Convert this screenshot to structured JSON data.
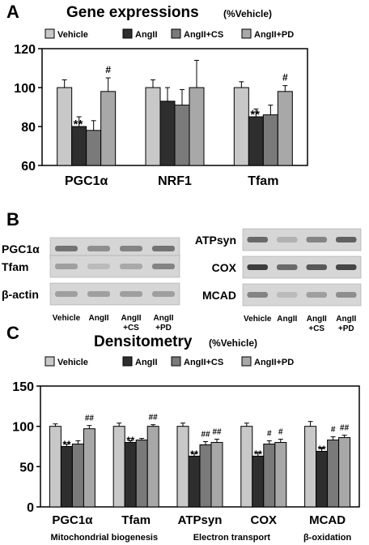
{
  "colors": {
    "vehicle": "#c8c8c8",
    "angii": "#2e2e2e",
    "angii_cs": "#7a7a7a",
    "angii_pd": "#a8a8a8"
  },
  "panelA": {
    "letter": "A",
    "title": "Gene expressions",
    "subtitle": "(%Vehicle)",
    "chart_data": {
      "type": "bar",
      "categories": [
        "PGC1α",
        "NRF1",
        "Tfam"
      ],
      "series": [
        {
          "name": "Vehicle",
          "values": [
            100,
            100,
            100
          ],
          "errors": [
            4,
            4,
            3
          ]
        },
        {
          "name": "AngII",
          "values": [
            80,
            93,
            85
          ],
          "errors": [
            5,
            7,
            4
          ]
        },
        {
          "name": "AngII+CS",
          "values": [
            78,
            91,
            86
          ],
          "errors": [
            5,
            8,
            5
          ]
        },
        {
          "name": "AngII+PD",
          "values": [
            98,
            100,
            98
          ],
          "errors": [
            7,
            14,
            3
          ]
        }
      ],
      "annotations": [
        {
          "category": 0,
          "series": 1,
          "text": "**"
        },
        {
          "category": 0,
          "series": 3,
          "text": "#"
        },
        {
          "category": 2,
          "series": 1,
          "text": "**"
        },
        {
          "category": 2,
          "series": 3,
          "text": "#"
        }
      ],
      "ylim": [
        60,
        120
      ],
      "yticks": [
        "60",
        "80",
        "100",
        "120"
      ],
      "legend": "top"
    }
  },
  "panelB": {
    "letter": "B",
    "left": {
      "rows": [
        "PGC1α",
        "Tfam",
        "β-actin"
      ],
      "lanes": [
        {
          "l1": "Vehicle",
          "l2": ""
        },
        {
          "l1": "AngII",
          "l2": ""
        },
        {
          "l1": "AngII",
          "l2": "+CS"
        },
        {
          "l1": "AngII",
          "l2": "+PD"
        }
      ]
    },
    "right": {
      "rows": [
        "ATPsyn",
        "COX",
        "MCAD"
      ],
      "lanes": [
        {
          "l1": "Vehicle",
          "l2": ""
        },
        {
          "l1": "AngII",
          "l2": ""
        },
        {
          "l1": "AngII",
          "l2": "+CS"
        },
        {
          "l1": "AngII",
          "l2": "+PD"
        }
      ]
    }
  },
  "panelC": {
    "letter": "C",
    "title": "Densitometry",
    "subtitle": "(%Vehicle)",
    "chart_data": {
      "type": "bar",
      "categories": [
        "PGC1α",
        "Tfam",
        "ATPsyn",
        "COX",
        "MCAD"
      ],
      "series": [
        {
          "name": "Vehicle",
          "values": [
            100,
            100,
            100,
            100,
            100
          ],
          "errors": [
            3,
            4,
            4,
            4,
            6
          ]
        },
        {
          "name": "AngII",
          "values": [
            75,
            80,
            63,
            63,
            69
          ],
          "errors": [
            3,
            2,
            3,
            5,
            4
          ]
        },
        {
          "name": "AngII+CS",
          "values": [
            78,
            83,
            77,
            78,
            83
          ],
          "errors": [
            4,
            2,
            4,
            4,
            4
          ]
        },
        {
          "name": "AngII+PD",
          "values": [
            97,
            100,
            80,
            80,
            86
          ],
          "errors": [
            4,
            2,
            4,
            4,
            3
          ]
        }
      ],
      "annotations": [
        {
          "category": 0,
          "series": 1,
          "text": "**"
        },
        {
          "category": 0,
          "series": 3,
          "text": "##"
        },
        {
          "category": 1,
          "series": 1,
          "text": "**"
        },
        {
          "category": 1,
          "series": 3,
          "text": "##"
        },
        {
          "category": 2,
          "series": 1,
          "text": "**"
        },
        {
          "category": 2,
          "series": 2,
          "text": "##"
        },
        {
          "category": 2,
          "series": 3,
          "text": "##"
        },
        {
          "category": 3,
          "series": 1,
          "text": "**"
        },
        {
          "category": 3,
          "series": 2,
          "text": "#"
        },
        {
          "category": 3,
          "series": 3,
          "text": "#"
        },
        {
          "category": 4,
          "series": 1,
          "text": "**"
        },
        {
          "category": 4,
          "series": 2,
          "text": "#"
        },
        {
          "category": 4,
          "series": 3,
          "text": "##"
        }
      ],
      "ylim": [
        0,
        150
      ],
      "yticks": [
        "0",
        "50",
        "100",
        "150"
      ],
      "groups": [
        "Mitochondrial biogenesis",
        "Electron transport",
        "β-oxidation"
      ],
      "legend": "top"
    }
  }
}
